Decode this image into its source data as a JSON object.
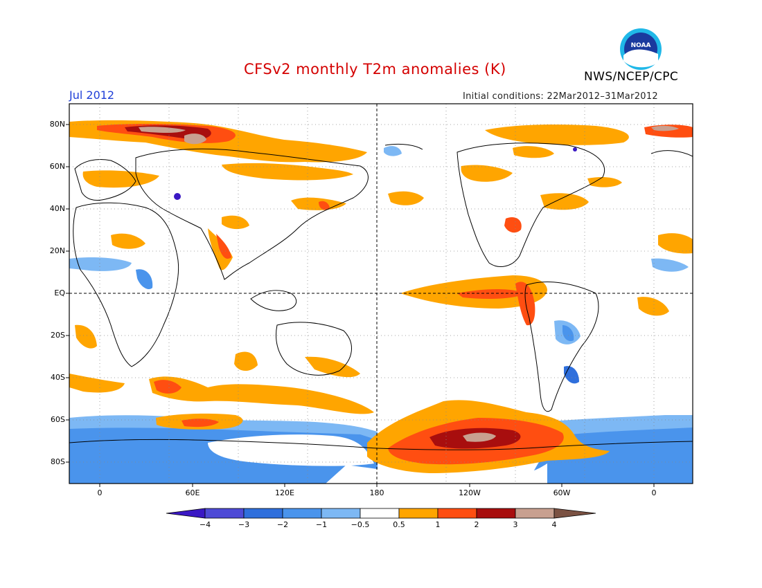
{
  "header": {
    "title": "CFSv2 monthly T2m anomalies (K)",
    "period": "Jul 2012",
    "initial_conditions": "Initial conditions: 22Mar2012–31Mar2012",
    "agency": "NWS/NCEP/CPC",
    "logo_text": "NOAA"
  },
  "map": {
    "projection": "cylindrical equidistant",
    "lat_labels": [
      "80N",
      "60N",
      "40N",
      "20N",
      "EQ",
      "20S",
      "40S",
      "60S",
      "80S"
    ],
    "lon_labels": [
      "0",
      "60E",
      "120E",
      "180",
      "120W",
      "60W",
      "0"
    ],
    "grid": "dotted",
    "center_longitude": "180"
  },
  "colorbar": {
    "labels": [
      "−4",
      "−3",
      "−2",
      "−1",
      "−0.5",
      "0.5",
      "1",
      "2",
      "3",
      "4"
    ],
    "colors": [
      "#3a18c4",
      "#4e4ad6",
      "#2f6fdc",
      "#4a94ec",
      "#7db8f4",
      "#ffffff",
      "#ffa500",
      "#ff4e11",
      "#a80e0e",
      "#c8a090",
      "#7b5243"
    ]
  }
}
